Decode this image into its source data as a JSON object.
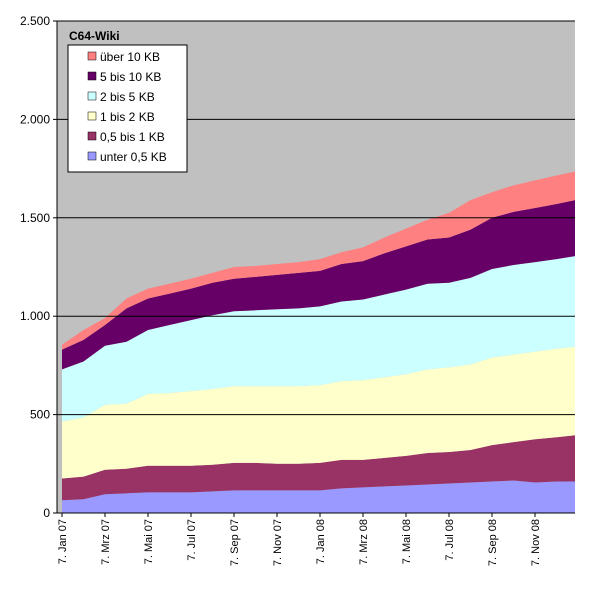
{
  "chart_data": {
    "type": "stacked_area",
    "title": "C64-Wiki",
    "categories": [
      "7. Jan 07",
      null,
      "7. Mrz 07",
      null,
      "7. Mai 07",
      null,
      "7. Jul 07",
      null,
      "7. Sep 07",
      null,
      "7. Nov 07",
      null,
      "7. Jan 08",
      null,
      "7. Mrz 08",
      null,
      "7. Mai 08",
      null,
      "7. Jul 08",
      null,
      "7. Sep 08",
      null,
      "7. Nov 08",
      null,
      null
    ],
    "series": [
      {
        "name": "unter 0,5 KB",
        "color": "#9999ff",
        "values": [
          65,
          70,
          95,
          100,
          105,
          105,
          105,
          110,
          115,
          115,
          115,
          115,
          115,
          125,
          130,
          135,
          140,
          145,
          150,
          155,
          160,
          165,
          155,
          160,
          160
        ]
      },
      {
        "name": "0,5 bis 1 KB",
        "color": "#993366",
        "values": [
          110,
          115,
          125,
          125,
          135,
          135,
          135,
          135,
          140,
          140,
          135,
          135,
          140,
          145,
          140,
          145,
          150,
          160,
          160,
          165,
          185,
          195,
          220,
          225,
          235
        ]
      },
      {
        "name": "1 bis 2 KB",
        "color": "#ffffcc",
        "values": [
          290,
          300,
          330,
          330,
          365,
          370,
          380,
          385,
          390,
          390,
          395,
          395,
          395,
          400,
          405,
          410,
          415,
          425,
          430,
          435,
          445,
          445,
          445,
          450,
          450
        ]
      },
      {
        "name": "2 bis 5 KB",
        "color": "#ccffff",
        "values": [
          265,
          285,
          300,
          315,
          325,
          345,
          360,
          375,
          380,
          385,
          390,
          395,
          400,
          405,
          410,
          420,
          430,
          435,
          430,
          440,
          450,
          455,
          455,
          455,
          460
        ]
      },
      {
        "name": "5 bis 10 KB",
        "color": "#660066",
        "values": [
          100,
          110,
          105,
          170,
          160,
          160,
          160,
          165,
          165,
          170,
          175,
          180,
          180,
          190,
          195,
          210,
          220,
          225,
          230,
          245,
          260,
          270,
          275,
          280,
          285
        ]
      },
      {
        "name": "über 10 KB",
        "color": "#ff8080",
        "values": [
          25,
          50,
          35,
          50,
          50,
          50,
          50,
          50,
          60,
          55,
          55,
          55,
          60,
          60,
          70,
          80,
          90,
          100,
          125,
          150,
          130,
          135,
          140,
          145,
          145
        ]
      }
    ],
    "ylim": [
      0,
      2500
    ],
    "yticks": [
      0,
      500,
      {
        "value": 1000,
        "label": "1.000"
      },
      {
        "value": 1500,
        "label": "1.500"
      },
      {
        "value": 2000,
        "label": "2.000"
      },
      {
        "value": 2500,
        "label": "2.500"
      }
    ],
    "grid": true,
    "plot_background": "#c0c0c0",
    "legend_position": "upper left"
  }
}
